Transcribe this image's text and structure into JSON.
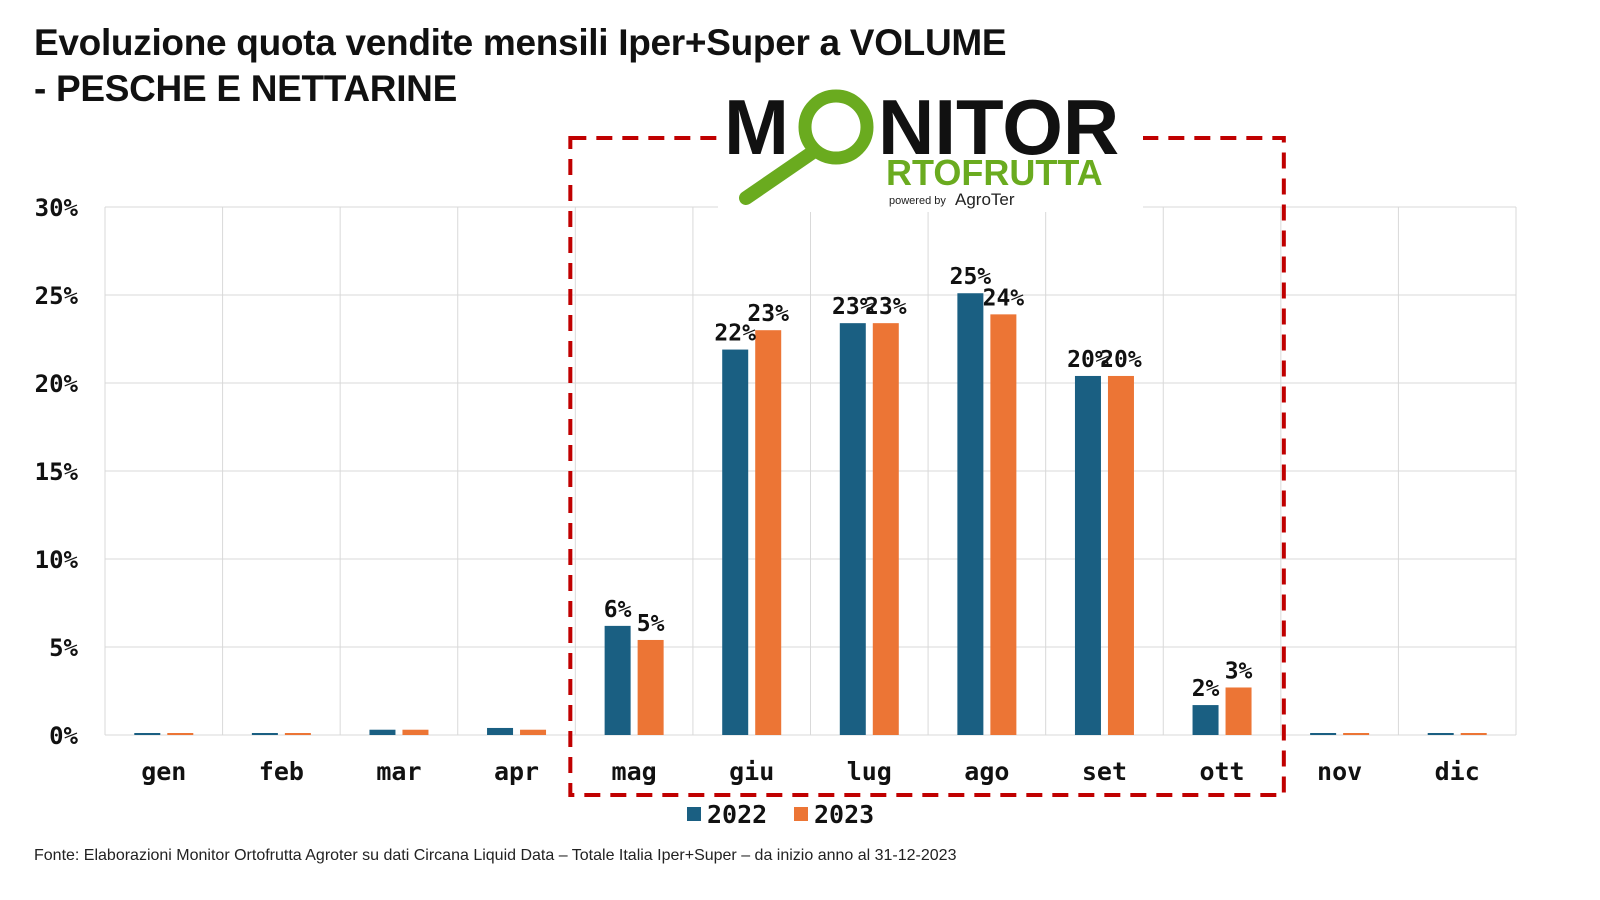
{
  "title": {
    "line1": "Evoluzione quota vendite mensili Iper+Super a VOLUME",
    "line2": "- PESCHE E NETTARINE"
  },
  "logo": {
    "word_prefix": "M",
    "word_suffix": "NITOR",
    "sub_rest": "RTOFRUTTA",
    "powered_prefix": "powered by",
    "powered_brand": "AgroTer",
    "colors": {
      "dark": "#111111",
      "green": "#6aab1f"
    }
  },
  "footer": "Fonte: Elaborazioni Monitor Ortofrutta Agroter su dati Circana Liquid Data – Totale Italia Iper+Super –  da inizio anno al 31-12-2023",
  "colors": {
    "s2022": "#1a5f82",
    "s2023": "#ec7535",
    "highlight": "#c00000",
    "grid": "#d9d9d9"
  },
  "chart_data": {
    "type": "bar",
    "categories": [
      "gen",
      "feb",
      "mar",
      "apr",
      "mag",
      "giu",
      "lug",
      "ago",
      "set",
      "ott",
      "nov",
      "dic"
    ],
    "series": [
      {
        "name": "2022",
        "values": [
          0.1,
          0.1,
          0.3,
          0.4,
          6.2,
          21.9,
          23.4,
          25.1,
          20.4,
          1.7,
          0.1,
          0.1
        ]
      },
      {
        "name": "2023",
        "values": [
          0.1,
          0.1,
          0.3,
          0.3,
          5.4,
          23.0,
          23.4,
          23.9,
          20.4,
          2.7,
          0.1,
          0.1
        ]
      }
    ],
    "data_labels": {
      "2022": [
        "",
        "",
        "",
        "",
        "6%",
        "22%",
        "23%",
        "25%",
        "20%",
        "2%",
        "",
        ""
      ],
      "2023": [
        "",
        "",
        "",
        "",
        "5%",
        "23%",
        "23%",
        "24%",
        "20%",
        "3%",
        "",
        ""
      ]
    },
    "y_ticks": [
      "0%",
      "5%",
      "10%",
      "15%",
      "20%",
      "25%",
      "30%"
    ],
    "ylim": [
      0,
      30
    ],
    "grid": true,
    "legend": "bottom-center",
    "highlighted_categories": [
      "mag",
      "giu",
      "lug",
      "ago",
      "set",
      "ott"
    ]
  }
}
